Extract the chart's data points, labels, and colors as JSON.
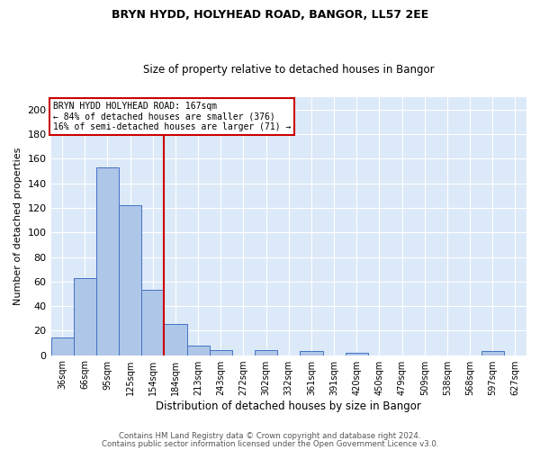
{
  "title1": "BRYN HYDD, HOLYHEAD ROAD, BANGOR, LL57 2EE",
  "title2": "Size of property relative to detached houses in Bangor",
  "xlabel": "Distribution of detached houses by size in Bangor",
  "ylabel": "Number of detached properties",
  "categories": [
    "36sqm",
    "66sqm",
    "95sqm",
    "125sqm",
    "154sqm",
    "184sqm",
    "213sqm",
    "243sqm",
    "272sqm",
    "302sqm",
    "332sqm",
    "361sqm",
    "391sqm",
    "420sqm",
    "450sqm",
    "479sqm",
    "509sqm",
    "538sqm",
    "568sqm",
    "597sqm",
    "627sqm"
  ],
  "values": [
    14,
    63,
    153,
    122,
    53,
    25,
    8,
    4,
    0,
    4,
    0,
    3,
    0,
    2,
    0,
    0,
    0,
    0,
    0,
    3,
    0
  ],
  "bar_color": "#aec6e8",
  "bar_edge_color": "#4472c4",
  "background_color": "#dce9f8",
  "grid_color": "#ffffff",
  "vline_color": "#cc0000",
  "annotation_box_edge": "#cc0000",
  "ylim": [
    0,
    210
  ],
  "yticks": [
    0,
    20,
    40,
    60,
    80,
    100,
    120,
    140,
    160,
    180,
    200
  ],
  "marker_label": "BRYN HYDD HOLYHEAD ROAD: 167sqm",
  "annotation_line1": "← 84% of detached houses are smaller (376)",
  "annotation_line2": "16% of semi-detached houses are larger (71) →",
  "footer1": "Contains HM Land Registry data © Crown copyright and database right 2024.",
  "footer2": "Contains public sector information licensed under the Open Government Licence v3.0."
}
